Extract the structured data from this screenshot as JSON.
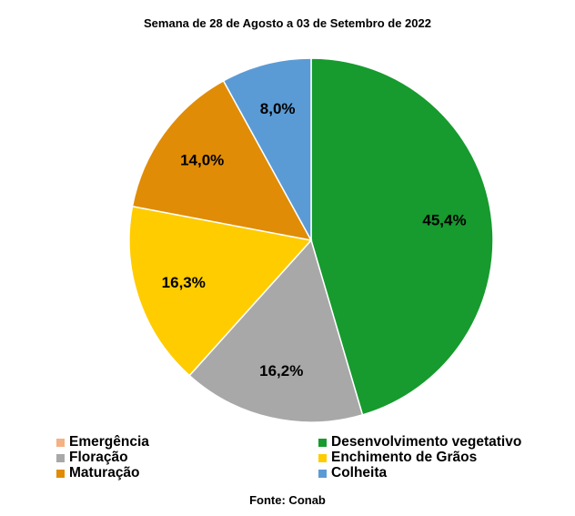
{
  "chart_data": {
    "type": "pie",
    "title": "Semana de 28 de Agosto a 03 de Setembro de 2022",
    "source": "Fonte: Conab",
    "legend_position": "bottom",
    "slices": [
      {
        "name": "Emergência",
        "value": 0.0,
        "label": "",
        "color": "#f4b183"
      },
      {
        "name": "Desenvolvimento vegetativo",
        "value": 45.4,
        "label": "45,4%",
        "color": "#179a2e"
      },
      {
        "name": "Floração",
        "value": 16.2,
        "label": "16,2%",
        "color": "#a8a8a8"
      },
      {
        "name": "Enchimento de Grãos",
        "value": 16.3,
        "label": "16,3%",
        "color": "#ffcc00"
      },
      {
        "name": "Maturação",
        "value": 14.0,
        "label": "14,0%",
        "color": "#e08c06"
      },
      {
        "name": "Colheita",
        "value": 8.0,
        "label": "8,0%",
        "color": "#5b9bd5"
      }
    ]
  }
}
